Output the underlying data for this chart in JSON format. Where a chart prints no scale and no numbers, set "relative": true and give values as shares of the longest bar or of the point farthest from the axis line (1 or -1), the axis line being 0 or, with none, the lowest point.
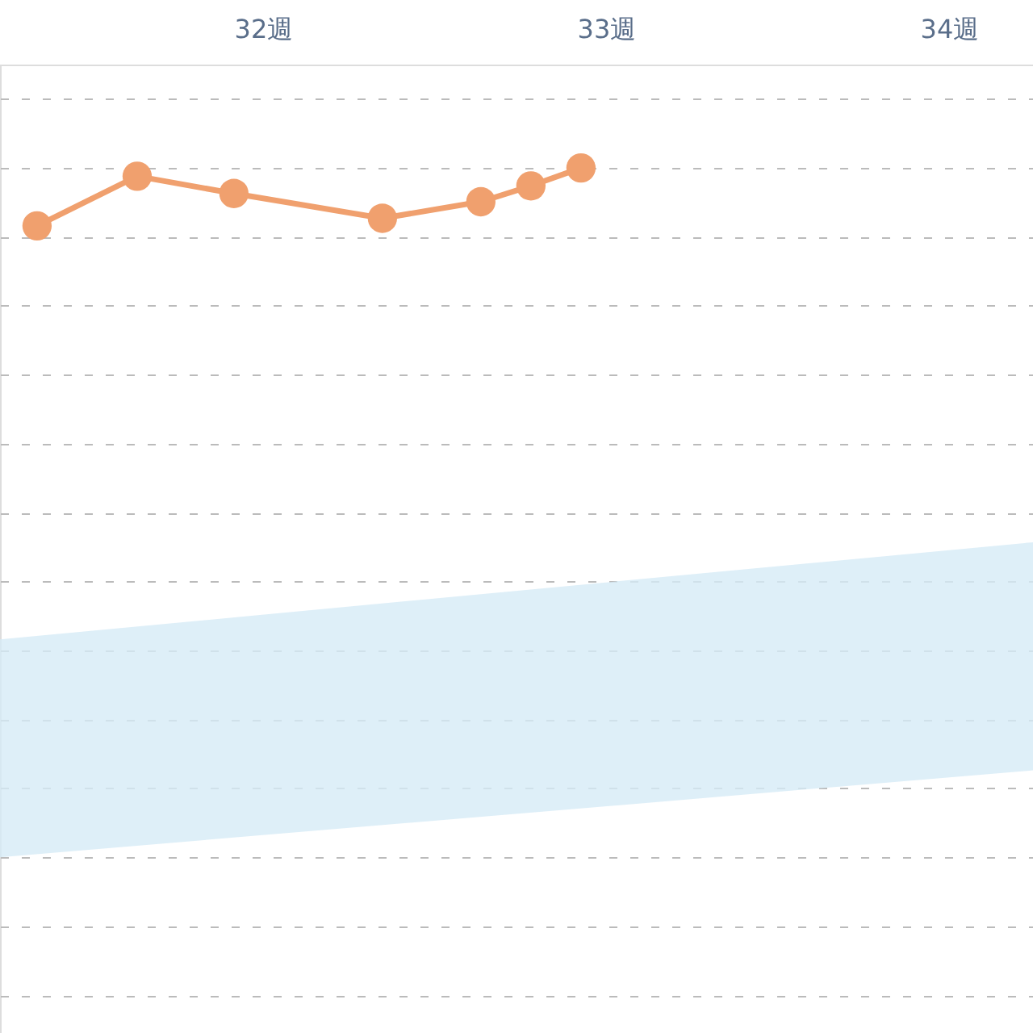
{
  "chart_data": {
    "type": "line",
    "relative": true,
    "xlim": [
      31.233,
      34.245
    ],
    "xticks": [
      {
        "value": 32,
        "label": "32週"
      },
      {
        "value": 33,
        "label": "33週"
      },
      {
        "value": 34,
        "label": "34週"
      }
    ],
    "series": [
      {
        "color": "#f0a06e",
        "x": [
          31.341,
          31.633,
          31.915,
          32.348,
          32.635,
          32.781,
          32.927
        ],
        "values": [
          0.916,
          0.988,
          0.963,
          0.927,
          0.951,
          0.974,
          1
        ]
      },
      {
        "color": "#d6ebf6",
        "x": [
          31.233,
          34.245
        ],
        "values": [
          null,
          null
        ],
        "lower": [
          0,
          0.126
        ],
        "upper": [
          0.316,
          0.457
        ]
      }
    ],
    "grid": "y",
    "marker": "circle"
  }
}
